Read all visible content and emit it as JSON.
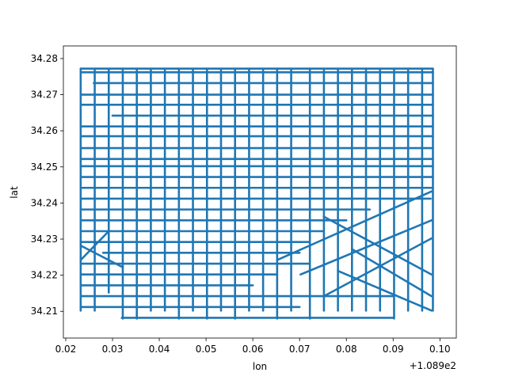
{
  "chart_data": {
    "type": "scatter",
    "title": "",
    "xlabel": "lon",
    "ylabel": "lat",
    "x_offset_label": "+1.089e2",
    "xlim": [
      0.0195,
      0.1035
    ],
    "ylim": [
      34.2026,
      34.2835
    ],
    "x_ticks": [
      0.02,
      0.03,
      0.04,
      0.05,
      0.06,
      0.07,
      0.08,
      0.09,
      0.1
    ],
    "x_tick_labels": [
      "0.02",
      "0.03",
      "0.04",
      "0.05",
      "0.06",
      "0.07",
      "0.08",
      "0.09",
      "0.10"
    ],
    "y_ticks": [
      34.21,
      34.22,
      34.23,
      34.24,
      34.25,
      34.26,
      34.27,
      34.28
    ],
    "y_tick_labels": [
      "34.21",
      "34.22",
      "34.23",
      "34.24",
      "34.25",
      "34.26",
      "34.27",
      "34.28"
    ],
    "grid": false,
    "legend": "none",
    "marker_color": "#1f77b4",
    "series": [
      {
        "horizontal_tracks": [
          {
            "y": 34.2772,
            "x": [
              0.0232,
              0.0985
            ]
          },
          {
            "y": 34.2762,
            "x": [
              0.0232,
              0.0985
            ]
          },
          {
            "y": 34.2732,
            "x": [
              0.026,
              0.0985
            ]
          },
          {
            "y": 34.27,
            "x": [
              0.0232,
              0.0985
            ]
          },
          {
            "y": 34.2672,
            "x": [
              0.0232,
              0.0985
            ]
          },
          {
            "y": 34.2642,
            "x": [
              0.03,
              0.0985
            ]
          },
          {
            "y": 34.2612,
            "x": [
              0.0232,
              0.0985
            ]
          },
          {
            "y": 34.2585,
            "x": [
              0.0232,
              0.0985
            ]
          },
          {
            "y": 34.2552,
            "x": [
              0.0232,
              0.0985
            ]
          },
          {
            "y": 34.2522,
            "x": [
              0.0232,
              0.0985
            ]
          },
          {
            "y": 34.2502,
            "x": [
              0.0232,
              0.0985
            ]
          },
          {
            "y": 34.2472,
            "x": [
              0.0232,
              0.0985
            ]
          },
          {
            "y": 34.2442,
            "x": [
              0.0232,
              0.0985
            ]
          },
          {
            "y": 34.2412,
            "x": [
              0.0232,
              0.098
            ]
          },
          {
            "y": 34.2382,
            "x": [
              0.0232,
              0.085
            ]
          },
          {
            "y": 34.2352,
            "x": [
              0.0232,
              0.08
            ]
          },
          {
            "y": 34.2322,
            "x": [
              0.0232,
              0.075
            ]
          },
          {
            "y": 34.2292,
            "x": [
              0.0232,
              0.072
            ]
          },
          {
            "y": 34.2262,
            "x": [
              0.028,
              0.07
            ]
          },
          {
            "y": 34.2232,
            "x": [
              0.0232,
              0.072
            ]
          },
          {
            "y": 34.2202,
            "x": [
              0.0232,
              0.065
            ]
          },
          {
            "y": 34.2172,
            "x": [
              0.0232,
              0.06
            ]
          },
          {
            "y": 34.2142,
            "x": [
              0.0232,
              0.09
            ]
          },
          {
            "y": 34.2112,
            "x": [
              0.0232,
              0.07
            ]
          },
          {
            "y": 34.2082,
            "x": [
              0.032,
              0.09
            ]
          }
        ],
        "vertical_tracks": [
          {
            "x": 0.0232,
            "y": [
              34.2102,
              34.2772
            ]
          },
          {
            "x": 0.0262,
            "y": [
              34.2102,
              34.2772
            ]
          },
          {
            "x": 0.0292,
            "y": [
              34.2152,
              34.2772
            ]
          },
          {
            "x": 0.0322,
            "y": [
              34.208,
              34.2772
            ]
          },
          {
            "x": 0.0352,
            "y": [
              34.208,
              34.2772
            ]
          },
          {
            "x": 0.0382,
            "y": [
              34.2102,
              34.2772
            ]
          },
          {
            "x": 0.0412,
            "y": [
              34.2102,
              34.2772
            ]
          },
          {
            "x": 0.0442,
            "y": [
              34.208,
              34.2772
            ]
          },
          {
            "x": 0.0472,
            "y": [
              34.2102,
              34.2772
            ]
          },
          {
            "x": 0.0502,
            "y": [
              34.208,
              34.2772
            ]
          },
          {
            "x": 0.0532,
            "y": [
              34.2102,
              34.2772
            ]
          },
          {
            "x": 0.0562,
            "y": [
              34.208,
              34.2772
            ]
          },
          {
            "x": 0.0592,
            "y": [
              34.2102,
              34.2772
            ]
          },
          {
            "x": 0.0622,
            "y": [
              34.2102,
              34.2772
            ]
          },
          {
            "x": 0.0652,
            "y": [
              34.208,
              34.2772
            ]
          },
          {
            "x": 0.0682,
            "y": [
              34.2102,
              34.2772
            ]
          },
          {
            "x": 0.0722,
            "y": [
              34.208,
              34.2772
            ]
          },
          {
            "x": 0.0752,
            "y": [
              34.2102,
              34.2772
            ]
          },
          {
            "x": 0.0782,
            "y": [
              34.2102,
              34.2772
            ]
          },
          {
            "x": 0.0812,
            "y": [
              34.2102,
              34.2772
            ]
          },
          {
            "x": 0.0842,
            "y": [
              34.2102,
              34.2772
            ]
          },
          {
            "x": 0.0872,
            "y": [
              34.2102,
              34.2772
            ]
          },
          {
            "x": 0.0902,
            "y": [
              34.208,
              34.2772
            ]
          },
          {
            "x": 0.0932,
            "y": [
              34.2102,
              34.2772
            ]
          },
          {
            "x": 0.0962,
            "y": [
              34.2102,
              34.2772
            ]
          },
          {
            "x": 0.0985,
            "y": [
              34.2102,
              34.2772
            ]
          }
        ],
        "diagonal_tracks": [
          {
            "from": [
              0.0652,
              34.2242
            ],
            "to": [
              0.0982,
              34.2432
            ]
          },
          {
            "from": [
              0.0702,
              34.2202
            ],
            "to": [
              0.0982,
              34.2352
            ]
          },
          {
            "from": [
              0.0752,
              34.2142
            ],
            "to": [
              0.0982,
              34.2302
            ]
          },
          {
            "from": [
              0.0782,
              34.2212
            ],
            "to": [
              0.0982,
              34.2102
            ]
          },
          {
            "from": [
              0.0812,
              34.2272
            ],
            "to": [
              0.0982,
              34.2142
            ]
          },
          {
            "from": [
              0.0752,
              34.2362
            ],
            "to": [
              0.0982,
              34.2202
            ]
          },
          {
            "from": [
              0.0232,
              34.2282
            ],
            "to": [
              0.0322,
              34.2222
            ]
          },
          {
            "from": [
              0.0232,
              34.2242
            ],
            "to": [
              0.0292,
              34.2322
            ]
          }
        ]
      }
    ]
  }
}
